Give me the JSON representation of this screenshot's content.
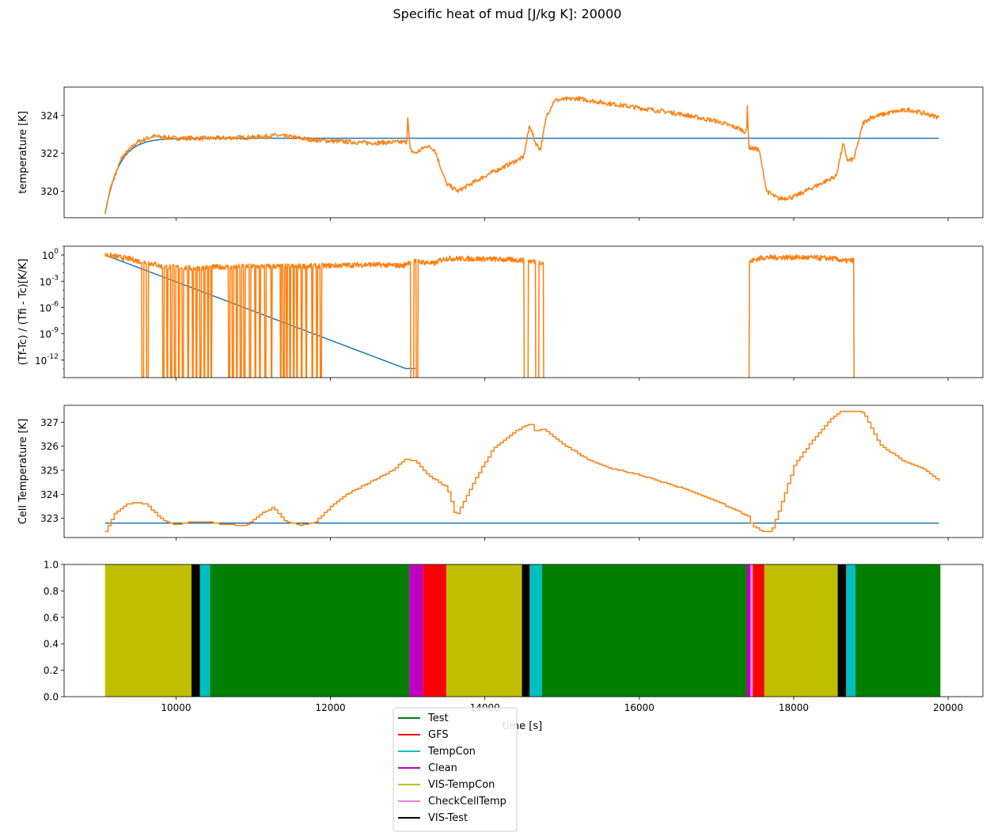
{
  "chart_data": {
    "title": "Specific heat of mud [J/kg K]: 20000",
    "xlabel": "time [s]",
    "xlim": [
      8550,
      20450
    ],
    "x_ticks": [
      10000,
      12000,
      14000,
      16000,
      18000,
      20000
    ],
    "colors": {
      "model": "#1f77b4",
      "measured": "#ff7f0e"
    },
    "panels": [
      {
        "type": "line",
        "ylabel": "temperature [K]",
        "ylim": [
          318.6,
          325.5
        ],
        "y_ticks": [
          320,
          322,
          324
        ],
        "y_tick_labels": [
          "320",
          "322",
          "324"
        ],
        "series": [
          {
            "color": "#1f77b4",
            "style": "exp_rise",
            "x_start": 9080,
            "x_end": 19880,
            "y0": 318.8,
            "y_inf": 322.8,
            "tau": 180
          },
          {
            "color": "#ff7f0e",
            "style": "noisy",
            "noise": 0.12,
            "points": [
              [
                9080,
                318.8
              ],
              [
                9150,
                320.2
              ],
              [
                9300,
                321.8
              ],
              [
                9500,
                322.6
              ],
              [
                9700,
                322.9
              ],
              [
                10000,
                322.8
              ],
              [
                10500,
                322.8
              ],
              [
                11000,
                322.85
              ],
              [
                11300,
                322.95
              ],
              [
                11800,
                322.7
              ],
              [
                12500,
                322.55
              ],
              [
                12990,
                322.6
              ],
              [
                13000,
                324.0
              ],
              [
                13030,
                322.2
              ],
              [
                13100,
                322.0
              ],
              [
                13250,
                322.4
              ],
              [
                13350,
                322.2
              ],
              [
                13500,
                320.4
              ],
              [
                13650,
                320.0
              ],
              [
                14000,
                320.8
              ],
              [
                14300,
                321.4
              ],
              [
                14500,
                321.8
              ],
              [
                14580,
                323.5
              ],
              [
                14650,
                322.6
              ],
              [
                14720,
                322.2
              ],
              [
                14800,
                324.0
              ],
              [
                14900,
                324.8
              ],
              [
                15200,
                324.9
              ],
              [
                15500,
                324.7
              ],
              [
                16000,
                324.4
              ],
              [
                16500,
                324.1
              ],
              [
                17000,
                323.7
              ],
              [
                17300,
                323.3
              ],
              [
                17390,
                323.1
              ],
              [
                17400,
                324.5
              ],
              [
                17420,
                322.3
              ],
              [
                17550,
                322.2
              ],
              [
                17650,
                320.0
              ],
              [
                17800,
                319.6
              ],
              [
                18000,
                319.7
              ],
              [
                18300,
                320.3
              ],
              [
                18550,
                320.8
              ],
              [
                18640,
                322.5
              ],
              [
                18700,
                321.6
              ],
              [
                18780,
                321.7
              ],
              [
                18900,
                323.6
              ],
              [
                19000,
                323.9
              ],
              [
                19300,
                324.2
              ],
              [
                19500,
                324.3
              ],
              [
                19700,
                324.1
              ],
              [
                19880,
                323.9
              ]
            ]
          }
        ]
      },
      {
        "type": "line",
        "yscale": "log",
        "ylabel": "(Tf-Tc) / (Tfi - Tc)[K/K]",
        "ylim": [
          1e-14,
          10
        ],
        "y_ticks": [
          1,
          0.001,
          1e-06,
          1e-09,
          1e-12
        ],
        "y_tick_labels": [
          "10^0",
          "10^-3",
          "10^-6",
          "10^-9",
          "10^-12"
        ],
        "series": [
          {
            "color": "#1f77b4",
            "style": "exp_decay",
            "x_start": 9080,
            "x_end": 13100,
            "y0": 1.0,
            "k": 0.00767,
            "floor_x": 12980,
            "floor_y": 1e-13
          },
          {
            "color": "#ff7f0e",
            "style": "spiky",
            "noise": 0.3,
            "points": [
              [
                9080,
                1.0
              ],
              [
                9300,
                0.5
              ],
              [
                9500,
                0.2
              ],
              [
                9800,
                0.05
              ],
              [
                10200,
                0.03
              ],
              [
                10500,
                0.04
              ],
              [
                11000,
                0.05
              ],
              [
                11500,
                0.05
              ],
              [
                12000,
                0.06
              ],
              [
                12500,
                0.08
              ],
              [
                12950,
                0.06
              ],
              [
                13050,
                0.2
              ],
              [
                13200,
                0.15
              ],
              [
                13350,
                0.1
              ],
              [
                13500,
                0.4
              ],
              [
                14000,
                0.35
              ],
              [
                14500,
                0.25
              ],
              [
                14700,
                0.15
              ],
              [
                17430,
                0.15
              ],
              [
                17600,
                0.5
              ],
              [
                18000,
                0.55
              ],
              [
                18500,
                0.4
              ],
              [
                18650,
                0.2
              ],
              [
                18780,
                0.25
              ]
            ],
            "dropouts": [
              [
                9560,
                9580
              ],
              [
                9620,
                9640
              ],
              [
                9830,
                9845
              ],
              [
                9880,
                9890
              ],
              [
                9930,
                9945
              ],
              [
                9980,
                9992
              ],
              [
                10030,
                10042
              ],
              [
                10080,
                10095
              ],
              [
                10150,
                10165
              ],
              [
                10210,
                10220
              ],
              [
                10260,
                10272
              ],
              [
                10310,
                10322
              ],
              [
                10360,
                10372
              ],
              [
                10410,
                10422
              ],
              [
                10450,
                10465
              ],
              [
                10680,
                10695
              ],
              [
                10730,
                10742
              ],
              [
                10780,
                10792
              ],
              [
                10830,
                10845
              ],
              [
                10880,
                10892
              ],
              [
                10950,
                10965
              ],
              [
                11020,
                11032
              ],
              [
                11080,
                11092
              ],
              [
                11150,
                11165
              ],
              [
                11230,
                11242
              ],
              [
                11350,
                11362
              ],
              [
                11390,
                11402
              ],
              [
                11430,
                11442
              ],
              [
                11470,
                11482
              ],
              [
                11520,
                11532
              ],
              [
                11560,
                11572
              ],
              [
                11620,
                11632
              ],
              [
                11680,
                11692
              ],
              [
                11760,
                11772
              ],
              [
                11820,
                11832
              ],
              [
                11870,
                11882
              ],
              [
                13040,
                13080
              ],
              [
                13110,
                13130
              ],
              [
                14510,
                14560
              ],
              [
                14660,
                14700
              ],
              [
                14760,
                17420
              ],
              [
                18780,
                20000
              ]
            ]
          }
        ]
      },
      {
        "type": "line",
        "ylabel": "Cell Temperature [K]",
        "ylim": [
          322.2,
          327.7
        ],
        "y_ticks": [
          323,
          324,
          325,
          326,
          327
        ],
        "y_tick_labels": [
          "323",
          "324",
          "325",
          "326",
          "327"
        ],
        "series": [
          {
            "color": "#1f77b4",
            "style": "flat",
            "x_start": 9080,
            "x_end": 19880,
            "y": 322.8
          },
          {
            "color": "#ff7f0e",
            "style": "stepped",
            "step": 40,
            "points": [
              [
                9080,
                322.45
              ],
              [
                9200,
                323.2
              ],
              [
                9350,
                323.6
              ],
              [
                9500,
                323.65
              ],
              [
                9600,
                323.6
              ],
              [
                9800,
                323.0
              ],
              [
                9900,
                322.8
              ],
              [
                10000,
                322.75
              ],
              [
                10200,
                322.85
              ],
              [
                10400,
                322.85
              ],
              [
                10600,
                322.75
              ],
              [
                10900,
                322.7
              ],
              [
                11100,
                323.2
              ],
              [
                11250,
                323.45
              ],
              [
                11400,
                322.9
              ],
              [
                11600,
                322.7
              ],
              [
                11800,
                322.85
              ],
              [
                12000,
                323.5
              ],
              [
                12200,
                324.0
              ],
              [
                12500,
                324.5
              ],
              [
                12800,
                325.0
              ],
              [
                12950,
                325.45
              ],
              [
                13100,
                325.4
              ],
              [
                13250,
                324.8
              ],
              [
                13500,
                324.3
              ],
              [
                13620,
                323.05
              ],
              [
                13700,
                323.6
              ],
              [
                13900,
                324.8
              ],
              [
                14100,
                325.9
              ],
              [
                14300,
                326.4
              ],
              [
                14500,
                326.85
              ],
              [
                14600,
                326.9
              ],
              [
                14650,
                326.6
              ],
              [
                14750,
                326.75
              ],
              [
                15000,
                326.1
              ],
              [
                15300,
                325.5
              ],
              [
                15600,
                325.1
              ],
              [
                16000,
                324.8
              ],
              [
                16500,
                324.3
              ],
              [
                17000,
                323.7
              ],
              [
                17400,
                323.1
              ],
              [
                17450,
                322.7
              ],
              [
                17600,
                322.45
              ],
              [
                17700,
                322.45
              ],
              [
                17800,
                323.3
              ],
              [
                18000,
                325.2
              ],
              [
                18250,
                326.3
              ],
              [
                18500,
                327.2
              ],
              [
                18600,
                327.45
              ],
              [
                18800,
                327.45
              ],
              [
                18900,
                327.4
              ],
              [
                19100,
                326.1
              ],
              [
                19400,
                325.4
              ],
              [
                19700,
                325.0
              ],
              [
                19880,
                324.55
              ]
            ]
          }
        ]
      },
      {
        "type": "area",
        "ylim": [
          0.0,
          1.0
        ],
        "y_ticks": [
          0.0,
          0.2,
          0.4,
          0.6,
          0.8,
          1.0
        ],
        "y_tick_labels": [
          "0.0",
          "0.2",
          "0.4",
          "0.6",
          "0.8",
          "1.0"
        ],
        "bands": [
          {
            "start": 9080,
            "end": 10200,
            "label": "VIS-TempCon"
          },
          {
            "start": 10200,
            "end": 10310,
            "label": "VIS-Test"
          },
          {
            "start": 10310,
            "end": 10440,
            "label": "TempCon"
          },
          {
            "start": 10440,
            "end": 13020,
            "label": "Test"
          },
          {
            "start": 13020,
            "end": 13200,
            "label": "Clean"
          },
          {
            "start": 13200,
            "end": 13500,
            "label": "GFS"
          },
          {
            "start": 13500,
            "end": 14480,
            "label": "VIS-TempCon"
          },
          {
            "start": 14480,
            "end": 14580,
            "label": "VIS-Test"
          },
          {
            "start": 14580,
            "end": 14740,
            "label": "TempCon"
          },
          {
            "start": 14740,
            "end": 17390,
            "label": "Test"
          },
          {
            "start": 17390,
            "end": 17440,
            "label": "Clean"
          },
          {
            "start": 17440,
            "end": 17470,
            "label": "CheckCellTemp"
          },
          {
            "start": 17470,
            "end": 17620,
            "label": "GFS"
          },
          {
            "start": 17620,
            "end": 18570,
            "label": "VIS-TempCon"
          },
          {
            "start": 18570,
            "end": 18680,
            "label": "VIS-Test"
          },
          {
            "start": 18680,
            "end": 18800,
            "label": "TempCon"
          },
          {
            "start": 18800,
            "end": 19900,
            "label": "Test"
          }
        ]
      }
    ],
    "legend": {
      "position": "below",
      "entries": [
        {
          "label": "Test",
          "color": "#008000"
        },
        {
          "label": "GFS",
          "color": "#ff0000"
        },
        {
          "label": "TempCon",
          "color": "#00bfbf"
        },
        {
          "label": "Clean",
          "color": "#bf00bf"
        },
        {
          "label": "VIS-TempCon",
          "color": "#bfbf00"
        },
        {
          "label": "CheckCellTemp",
          "color": "#ee82ee"
        },
        {
          "label": "VIS-Test",
          "color": "#000000"
        }
      ]
    }
  }
}
